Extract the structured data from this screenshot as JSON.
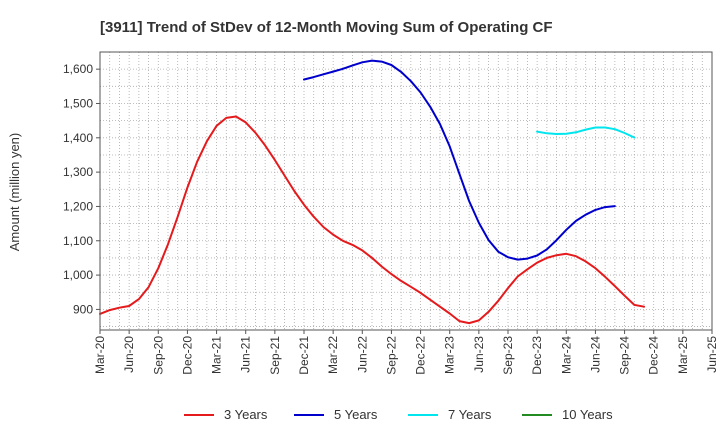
{
  "chart_data": {
    "type": "line",
    "title": "[3911]  Trend of StDev of 12-Month Moving Sum of Operating CF",
    "ylabel": "Amount (million yen)",
    "xlabel": "",
    "ylim": [
      840,
      1650
    ],
    "y_ticks": [
      900,
      1000,
      1100,
      1200,
      1300,
      1400,
      1500,
      1600
    ],
    "y_tick_labels": [
      "900",
      "1,000",
      "1,100",
      "1,200",
      "1,300",
      "1,400",
      "1,500",
      "1,600"
    ],
    "x_tick_labels": [
      "Mar-20",
      "Jun-20",
      "Sep-20",
      "Dec-20",
      "Mar-21",
      "Jun-21",
      "Sep-21",
      "Dec-21",
      "Mar-22",
      "Jun-22",
      "Sep-22",
      "Dec-22",
      "Mar-23",
      "Jun-23",
      "Sep-23",
      "Dec-23",
      "Mar-24",
      "Jun-24",
      "Sep-24",
      "Dec-24",
      "Mar-25",
      "Jun-25"
    ],
    "grid": true,
    "legend_position": "bottom",
    "series": [
      {
        "name": "3 Years",
        "color": "#e41a1c",
        "start": "Mar-20",
        "values": [
          887,
          898,
          905,
          910,
          930,
          965,
          1020,
          1090,
          1170,
          1255,
          1330,
          1390,
          1435,
          1458,
          1462,
          1445,
          1415,
          1378,
          1335,
          1290,
          1245,
          1205,
          1170,
          1140,
          1118,
          1100,
          1088,
          1072,
          1050,
          1025,
          1003,
          983,
          966,
          948,
          928,
          908,
          888,
          866,
          860,
          868,
          893,
          925,
          962,
          996,
          1017,
          1036,
          1050,
          1058,
          1062,
          1055,
          1040,
          1020,
          995,
          968,
          940,
          913,
          908
        ]
      },
      {
        "name": "5 Years",
        "color": "#0000cc",
        "start": "Dec-21",
        "values": [
          1570,
          1577,
          1585,
          1593,
          1601,
          1611,
          1620,
          1625,
          1622,
          1612,
          1592,
          1565,
          1532,
          1490,
          1440,
          1375,
          1295,
          1216,
          1152,
          1102,
          1068,
          1052,
          1045,
          1048,
          1057,
          1075,
          1102,
          1132,
          1158,
          1176,
          1190,
          1198,
          1201
        ]
      },
      {
        "name": "7 Years",
        "color": "#00e5ee",
        "start": "Dec-23",
        "values": [
          1418,
          1413,
          1411,
          1412,
          1416,
          1424,
          1430,
          1430,
          1425,
          1414,
          1401
        ]
      },
      {
        "name": "10 Years",
        "color": "#228b22",
        "start": "Dec-24",
        "values": []
      }
    ]
  }
}
